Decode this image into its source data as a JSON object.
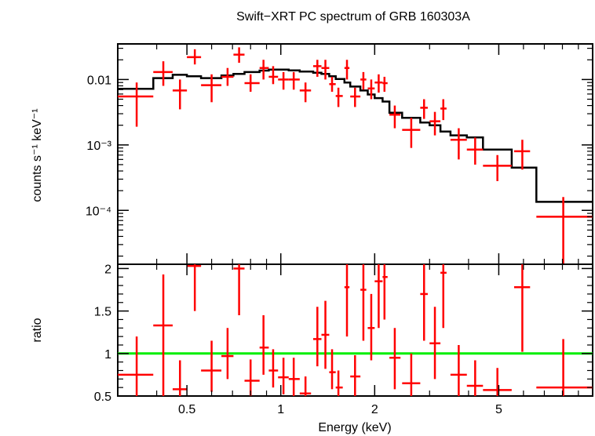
{
  "chart_data": {
    "type": "scatter",
    "title": "Swift−XRT PC spectrum of GRB 160303A",
    "xlabel": "Energy (keV)",
    "xscale": "log",
    "xlim": [
      0.3,
      10
    ],
    "xticks": [
      {
        "v": 0.5,
        "label": "0.5"
      },
      {
        "v": 1,
        "label": "1"
      },
      {
        "v": 2,
        "label": "2"
      },
      {
        "v": 5,
        "label": "5"
      }
    ],
    "panels": [
      {
        "name": "spectrum",
        "ylabel": "counts s⁻¹ keV⁻¹",
        "yscale": "log",
        "ylim": [
          1.5e-05,
          0.035
        ],
        "yticks": [
          {
            "v": 0.01,
            "label": "0.01"
          },
          {
            "v": 0.001,
            "label": "10⁻³"
          },
          {
            "v": 0.0001,
            "label": "10⁻⁴"
          }
        ],
        "series": [
          {
            "kind": "errorbars",
            "color": "#ff0000",
            "points": [
              {
                "x": 0.345,
                "xlo": 0.3,
                "xhi": 0.39,
                "y": 0.0055,
                "ylo": 0.0019,
                "yhi": 0.009
              },
              {
                "x": 0.42,
                "xlo": 0.39,
                "xhi": 0.45,
                "y": 0.013,
                "ylo": 0.008,
                "yhi": 0.019
              },
              {
                "x": 0.475,
                "xlo": 0.45,
                "xhi": 0.5,
                "y": 0.0068,
                "ylo": 0.0035,
                "yhi": 0.01
              },
              {
                "x": 0.53,
                "xlo": 0.5,
                "xhi": 0.555,
                "y": 0.022,
                "ylo": 0.017,
                "yhi": 0.029
              },
              {
                "x": 0.6,
                "xlo": 0.555,
                "xhi": 0.645,
                "y": 0.0082,
                "ylo": 0.0045,
                "yhi": 0.012
              },
              {
                "x": 0.675,
                "xlo": 0.645,
                "xhi": 0.705,
                "y": 0.011,
                "ylo": 0.008,
                "yhi": 0.015
              },
              {
                "x": 0.735,
                "xlo": 0.705,
                "xhi": 0.765,
                "y": 0.024,
                "ylo": 0.018,
                "yhi": 0.031
              },
              {
                "x": 0.8,
                "xlo": 0.765,
                "xhi": 0.855,
                "y": 0.0088,
                "ylo": 0.0065,
                "yhi": 0.012
              },
              {
                "x": 0.88,
                "xlo": 0.855,
                "xhi": 0.915,
                "y": 0.015,
                "ylo": 0.01,
                "yhi": 0.02
              },
              {
                "x": 0.945,
                "xlo": 0.915,
                "xhi": 0.98,
                "y": 0.011,
                "ylo": 0.0085,
                "yhi": 0.016
              },
              {
                "x": 1.02,
                "xlo": 0.98,
                "xhi": 1.06,
                "y": 0.01,
                "ylo": 0.007,
                "yhi": 0.013
              },
              {
                "x": 1.1,
                "xlo": 1.06,
                "xhi": 1.15,
                "y": 0.01,
                "ylo": 0.007,
                "yhi": 0.013
              },
              {
                "x": 1.2,
                "xlo": 1.15,
                "xhi": 1.25,
                "y": 0.0068,
                "ylo": 0.0045,
                "yhi": 0.009
              },
              {
                "x": 1.31,
                "xlo": 1.27,
                "xhi": 1.35,
                "y": 0.016,
                "ylo": 0.011,
                "yhi": 0.02
              },
              {
                "x": 1.39,
                "xlo": 1.35,
                "xhi": 1.43,
                "y": 0.015,
                "ylo": 0.01,
                "yhi": 0.02
              },
              {
                "x": 1.46,
                "xlo": 1.43,
                "xhi": 1.5,
                "y": 0.0085,
                "ylo": 0.0065,
                "yhi": 0.011
              },
              {
                "x": 1.53,
                "xlo": 1.5,
                "xhi": 1.58,
                "y": 0.0056,
                "ylo": 0.0038,
                "yhi": 0.0075
              },
              {
                "x": 1.63,
                "xlo": 1.6,
                "xhi": 1.66,
                "y": 0.015,
                "ylo": 0.01,
                "yhi": 0.02
              },
              {
                "x": 1.73,
                "xlo": 1.67,
                "xhi": 1.8,
                "y": 0.0055,
                "ylo": 0.0038,
                "yhi": 0.0075
              },
              {
                "x": 1.84,
                "xlo": 1.8,
                "xhi": 1.88,
                "y": 0.01,
                "ylo": 0.007,
                "yhi": 0.013
              },
              {
                "x": 1.95,
                "xlo": 1.9,
                "xhi": 2.0,
                "y": 0.0073,
                "ylo": 0.005,
                "yhi": 0.01
              },
              {
                "x": 2.06,
                "xlo": 2.0,
                "xhi": 2.12,
                "y": 0.009,
                "ylo": 0.0063,
                "yhi": 0.012
              },
              {
                "x": 2.15,
                "xlo": 2.12,
                "xhi": 2.2,
                "y": 0.0088,
                "ylo": 0.0065,
                "yhi": 0.011
              },
              {
                "x": 2.32,
                "xlo": 2.23,
                "xhi": 2.42,
                "y": 0.0029,
                "ylo": 0.0018,
                "yhi": 0.004
              },
              {
                "x": 2.62,
                "xlo": 2.45,
                "xhi": 2.8,
                "y": 0.0017,
                "ylo": 0.0009,
                "yhi": 0.0026
              },
              {
                "x": 2.88,
                "xlo": 2.8,
                "xhi": 2.96,
                "y": 0.0037,
                "ylo": 0.0025,
                "yhi": 0.005
              },
              {
                "x": 3.12,
                "xlo": 3.0,
                "xhi": 3.25,
                "y": 0.0023,
                "ylo": 0.0014,
                "yhi": 0.0032
              },
              {
                "x": 3.32,
                "xlo": 3.25,
                "xhi": 3.4,
                "y": 0.0036,
                "ylo": 0.0024,
                "yhi": 0.005
              },
              {
                "x": 3.72,
                "xlo": 3.5,
                "xhi": 3.95,
                "y": 0.0012,
                "ylo": 0.0006,
                "yhi": 0.0018
              },
              {
                "x": 4.2,
                "xlo": 3.95,
                "xhi": 4.45,
                "y": 0.00085,
                "ylo": 0.0005,
                "yhi": 0.0013
              },
              {
                "x": 4.95,
                "xlo": 4.45,
                "xhi": 5.5,
                "y": 0.00048,
                "ylo": 0.00028,
                "yhi": 0.0007
              },
              {
                "x": 5.95,
                "xlo": 5.6,
                "xhi": 6.3,
                "y": 0.0008,
                "ylo": 0.00042,
                "yhi": 0.0012
              },
              {
                "x": 8.05,
                "xlo": 6.6,
                "xhi": 10.0,
                "y": 8e-05,
                "ylo": 1.5e-05,
                "yhi": 0.00016
              }
            ]
          },
          {
            "kind": "model-step",
            "color": "#000000",
            "bins": [
              {
                "x0": 0.3,
                "x1": 0.39,
                "y": 0.0072
              },
              {
                "x0": 0.39,
                "x1": 0.45,
                "y": 0.0105
              },
              {
                "x0": 0.45,
                "x1": 0.5,
                "y": 0.0118
              },
              {
                "x0": 0.5,
                "x1": 0.555,
                "y": 0.0112
              },
              {
                "x0": 0.555,
                "x1": 0.645,
                "y": 0.0105
              },
              {
                "x0": 0.645,
                "x1": 0.705,
                "y": 0.0115
              },
              {
                "x0": 0.705,
                "x1": 0.765,
                "y": 0.0122
              },
              {
                "x0": 0.765,
                "x1": 0.855,
                "y": 0.013
              },
              {
                "x0": 0.855,
                "x1": 0.915,
                "y": 0.0137
              },
              {
                "x0": 0.915,
                "x1": 0.98,
                "y": 0.0142
              },
              {
                "x0": 0.98,
                "x1": 1.06,
                "y": 0.0142
              },
              {
                "x0": 1.06,
                "x1": 1.15,
                "y": 0.0138
              },
              {
                "x0": 1.15,
                "x1": 1.27,
                "y": 0.0132
              },
              {
                "x0": 1.27,
                "x1": 1.35,
                "y": 0.0127
              },
              {
                "x0": 1.35,
                "x1": 1.43,
                "y": 0.0122
              },
              {
                "x0": 1.43,
                "x1": 1.5,
                "y": 0.0112
              },
              {
                "x0": 1.5,
                "x1": 1.6,
                "y": 0.0102
              },
              {
                "x0": 1.6,
                "x1": 1.67,
                "y": 0.009
              },
              {
                "x0": 1.67,
                "x1": 1.8,
                "y": 0.0078
              },
              {
                "x0": 1.8,
                "x1": 1.9,
                "y": 0.0068
              },
              {
                "x0": 1.9,
                "x1": 2.0,
                "y": 0.0059
              },
              {
                "x0": 2.0,
                "x1": 2.12,
                "y": 0.0052
              },
              {
                "x0": 2.12,
                "x1": 2.23,
                "y": 0.0046
              },
              {
                "x0": 2.23,
                "x1": 2.45,
                "y": 0.0031
              },
              {
                "x0": 2.45,
                "x1": 2.8,
                "y": 0.0026
              },
              {
                "x0": 2.8,
                "x1": 3.0,
                "y": 0.0022
              },
              {
                "x0": 3.0,
                "x1": 3.25,
                "y": 0.002
              },
              {
                "x0": 3.25,
                "x1": 3.5,
                "y": 0.0016
              },
              {
                "x0": 3.5,
                "x1": 3.95,
                "y": 0.0014
              },
              {
                "x0": 3.95,
                "x1": 4.45,
                "y": 0.0013
              },
              {
                "x0": 4.45,
                "x1": 5.5,
                "y": 0.00085
              },
              {
                "x0": 5.5,
                "x1": 6.6,
                "y": 0.00045
              },
              {
                "x0": 6.6,
                "x1": 10.0,
                "y": 0.000135
              }
            ]
          }
        ]
      },
      {
        "name": "ratio",
        "ylabel": "ratio",
        "yscale": "linear",
        "ylim": [
          0.5,
          2.05
        ],
        "yticks": [
          {
            "v": 0.5,
            "label": "0.5"
          },
          {
            "v": 1,
            "label": "1"
          },
          {
            "v": 1.5,
            "label": "1.5"
          },
          {
            "v": 2,
            "label": "2"
          }
        ],
        "reference": {
          "y": 1,
          "color": "#00ee00"
        },
        "series": [
          {
            "kind": "errorbars",
            "color": "#ff0000",
            "points": [
              {
                "x": 0.345,
                "xlo": 0.3,
                "xhi": 0.39,
                "y": 0.75,
                "ylo": 0.5,
                "yhi": 1.2
              },
              {
                "x": 0.42,
                "xlo": 0.39,
                "xhi": 0.45,
                "y": 1.33,
                "ylo": 0.5,
                "yhi": 1.93
              },
              {
                "x": 0.475,
                "xlo": 0.45,
                "xhi": 0.5,
                "y": 0.58,
                "ylo": 0.5,
                "yhi": 0.92
              },
              {
                "x": 0.53,
                "xlo": 0.5,
                "xhi": 0.555,
                "y": 2.03,
                "ylo": 1.5,
                "yhi": 2.05
              },
              {
                "x": 0.6,
                "xlo": 0.555,
                "xhi": 0.645,
                "y": 0.8,
                "ylo": 0.55,
                "yhi": 1.15
              },
              {
                "x": 0.675,
                "xlo": 0.645,
                "xhi": 0.705,
                "y": 0.97,
                "ylo": 0.7,
                "yhi": 1.3
              },
              {
                "x": 0.735,
                "xlo": 0.705,
                "xhi": 0.765,
                "y": 2.0,
                "ylo": 1.45,
                "yhi": 2.05
              },
              {
                "x": 0.8,
                "xlo": 0.765,
                "xhi": 0.855,
                "y": 0.68,
                "ylo": 0.5,
                "yhi": 0.93
              },
              {
                "x": 0.88,
                "xlo": 0.855,
                "xhi": 0.915,
                "y": 1.07,
                "ylo": 0.75,
                "yhi": 1.45
              },
              {
                "x": 0.945,
                "xlo": 0.915,
                "xhi": 0.98,
                "y": 0.8,
                "ylo": 0.6,
                "yhi": 1.05
              },
              {
                "x": 1.02,
                "xlo": 0.98,
                "xhi": 1.06,
                "y": 0.72,
                "ylo": 0.52,
                "yhi": 0.95
              },
              {
                "x": 1.1,
                "xlo": 1.06,
                "xhi": 1.15,
                "y": 0.7,
                "ylo": 0.5,
                "yhi": 0.95
              },
              {
                "x": 1.2,
                "xlo": 1.15,
                "xhi": 1.25,
                "y": 0.53,
                "ylo": 0.5,
                "yhi": 0.73
              },
              {
                "x": 1.31,
                "xlo": 1.27,
                "xhi": 1.35,
                "y": 1.17,
                "ylo": 0.85,
                "yhi": 1.55
              },
              {
                "x": 1.39,
                "xlo": 1.35,
                "xhi": 1.43,
                "y": 1.22,
                "ylo": 0.82,
                "yhi": 1.62
              },
              {
                "x": 1.46,
                "xlo": 1.43,
                "xhi": 1.5,
                "y": 0.78,
                "ylo": 0.58,
                "yhi": 1.05
              },
              {
                "x": 1.53,
                "xlo": 1.5,
                "xhi": 1.58,
                "y": 0.6,
                "ylo": 0.5,
                "yhi": 0.8
              },
              {
                "x": 1.63,
                "xlo": 1.6,
                "xhi": 1.66,
                "y": 1.78,
                "ylo": 1.2,
                "yhi": 2.05
              },
              {
                "x": 1.73,
                "xlo": 1.67,
                "xhi": 1.8,
                "y": 0.73,
                "ylo": 0.5,
                "yhi": 0.98
              },
              {
                "x": 1.84,
                "xlo": 1.8,
                "xhi": 1.88,
                "y": 1.75,
                "ylo": 1.15,
                "yhi": 2.05
              },
              {
                "x": 1.95,
                "xlo": 1.9,
                "xhi": 2.0,
                "y": 1.3,
                "ylo": 0.92,
                "yhi": 1.7
              },
              {
                "x": 2.06,
                "xlo": 2.0,
                "xhi": 2.12,
                "y": 1.85,
                "ylo": 1.3,
                "yhi": 2.05
              },
              {
                "x": 2.15,
                "xlo": 2.12,
                "xhi": 2.2,
                "y": 1.9,
                "ylo": 1.4,
                "yhi": 2.05
              },
              {
                "x": 2.32,
                "xlo": 2.23,
                "xhi": 2.42,
                "y": 0.95,
                "ylo": 0.58,
                "yhi": 1.3
              },
              {
                "x": 2.62,
                "xlo": 2.45,
                "xhi": 2.8,
                "y": 0.65,
                "ylo": 0.5,
                "yhi": 1.0
              },
              {
                "x": 2.88,
                "xlo": 2.8,
                "xhi": 2.96,
                "y": 1.7,
                "ylo": 1.15,
                "yhi": 2.05
              },
              {
                "x": 3.12,
                "xlo": 3.0,
                "xhi": 3.25,
                "y": 1.12,
                "ylo": 0.7,
                "yhi": 1.55
              },
              {
                "x": 3.32,
                "xlo": 3.25,
                "xhi": 3.4,
                "y": 1.95,
                "ylo": 1.3,
                "yhi": 2.05
              },
              {
                "x": 3.72,
                "xlo": 3.5,
                "xhi": 3.95,
                "y": 0.75,
                "ylo": 0.5,
                "yhi": 1.1
              },
              {
                "x": 4.2,
                "xlo": 3.95,
                "xhi": 4.45,
                "y": 0.62,
                "ylo": 0.5,
                "yhi": 0.92
              },
              {
                "x": 4.95,
                "xlo": 4.45,
                "xhi": 5.5,
                "y": 0.57,
                "ylo": 0.5,
                "yhi": 0.83
              },
              {
                "x": 5.95,
                "xlo": 5.6,
                "xhi": 6.3,
                "y": 1.78,
                "ylo": 1.02,
                "yhi": 2.05
              },
              {
                "x": 8.05,
                "xlo": 6.6,
                "xhi": 10.0,
                "y": 0.6,
                "ylo": 0.5,
                "yhi": 1.17
              }
            ]
          }
        ]
      }
    ]
  }
}
